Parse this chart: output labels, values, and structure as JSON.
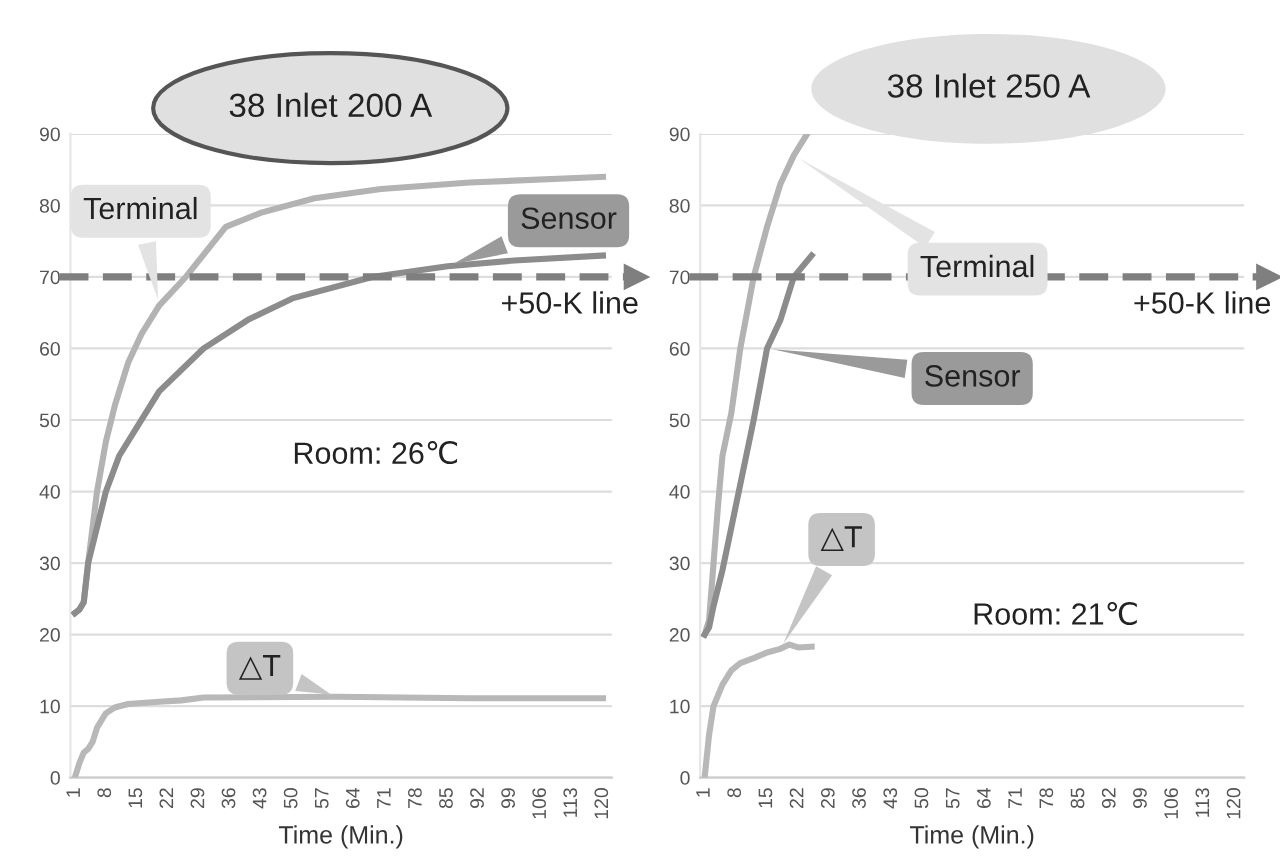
{
  "chart_data": [
    {
      "type": "line",
      "title": "38 Inlet 200 A",
      "xlabel": "Time (Min.)",
      "xlim": [
        0,
        122
      ],
      "ylim": [
        0,
        90
      ],
      "xticks": [
        1,
        8,
        15,
        22,
        29,
        36,
        43,
        50,
        57,
        64,
        71,
        78,
        85,
        92,
        99,
        106,
        113,
        120
      ],
      "yticks": [
        0,
        10,
        20,
        30,
        40,
        50,
        60,
        70,
        80,
        90
      ],
      "grid": "y",
      "marker": "none",
      "line_style": "solid",
      "series": [
        {
          "name": "Terminal",
          "color": "#b3b3b3",
          "x": [
            1,
            2,
            3,
            4,
            6,
            8,
            10,
            13,
            16,
            20,
            26,
            35,
            43,
            55,
            70,
            90,
            120
          ],
          "values": [
            23,
            23.5,
            24.5,
            30,
            40,
            47,
            52,
            58,
            62,
            66,
            70,
            77,
            79,
            81,
            82.3,
            83.2,
            84
          ]
        },
        {
          "name": "Sensor",
          "color": "#8c8c8c",
          "x": [
            1,
            2,
            3,
            4,
            6,
            8,
            11,
            15,
            20,
            30,
            40,
            50,
            68,
            85,
            100,
            120
          ],
          "values": [
            23,
            23.5,
            24.5,
            30,
            35,
            40,
            45,
            49,
            54,
            60,
            64,
            67,
            70,
            71.5,
            72.3,
            73
          ]
        },
        {
          "name": "△T",
          "color": "#b8b8b8",
          "x": [
            1,
            2,
            3,
            4,
            5,
            6,
            8,
            10,
            13,
            20,
            25,
            30,
            60,
            90,
            120
          ],
          "values": [
            0,
            2,
            3.5,
            4,
            5,
            7,
            9,
            9.8,
            10.3,
            10.6,
            10.8,
            11.2,
            11.3,
            11.1,
            11.1
          ]
        }
      ],
      "ref_lines": [
        {
          "axis": "y",
          "value": 70,
          "label": "+50-K line",
          "color": "#7f7f7f",
          "line_style": "dashed"
        }
      ],
      "annotations": [
        "Room: 26℃"
      ]
    },
    {
      "type": "line",
      "title": "38 Inlet 250 A",
      "xlabel": "Time (Min.)",
      "xlim": [
        0,
        122
      ],
      "ylim": [
        0,
        90
      ],
      "xticks": [
        1,
        8,
        15,
        22,
        29,
        36,
        43,
        50,
        57,
        64,
        71,
        78,
        85,
        92,
        99,
        106,
        113,
        120
      ],
      "yticks": [
        0,
        10,
        20,
        30,
        40,
        50,
        60,
        70,
        80,
        90
      ],
      "grid": "y",
      "marker": "none",
      "line_style": "solid",
      "series": [
        {
          "name": "Terminal",
          "color": "#b3b3b3",
          "x": [
            1,
            2,
            3,
            4,
            5,
            7,
            9,
            12,
            15,
            18,
            21,
            24
          ],
          "values": [
            20,
            22,
            30,
            38,
            45,
            51,
            60,
            70,
            77,
            83,
            87,
            90
          ]
        },
        {
          "name": "Sensor",
          "color": "#8c8c8c",
          "x": [
            1,
            2,
            3,
            5,
            7,
            9,
            12,
            15,
            18,
            21,
            25
          ],
          "values": [
            20,
            21,
            24,
            29,
            35,
            41,
            50,
            60,
            64,
            70,
            73
          ]
        },
        {
          "name": "△T",
          "color": "#b8b8b8",
          "x": [
            1,
            2,
            3,
            5,
            7,
            9,
            12,
            15,
            18,
            20,
            22,
            25
          ],
          "values": [
            0,
            6,
            10,
            13,
            15,
            16,
            16.7,
            17.5,
            18,
            18.6,
            18.2,
            18.3
          ]
        }
      ],
      "ref_lines": [
        {
          "axis": "y",
          "value": 70,
          "label": "+50-K line",
          "color": "#7f7f7f",
          "line_style": "dashed"
        }
      ],
      "annotations": [
        "Room: 21℃"
      ]
    }
  ]
}
